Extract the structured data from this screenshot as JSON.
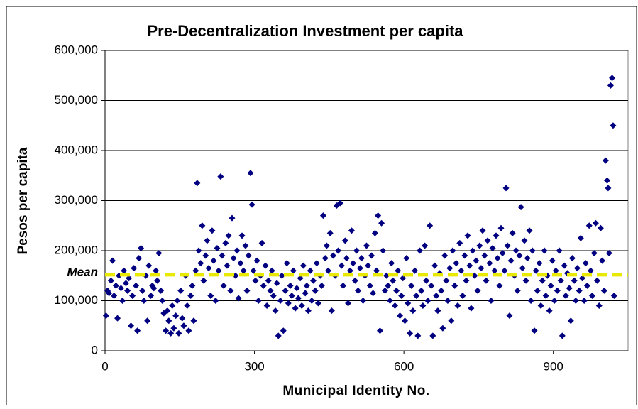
{
  "chart_data": {
    "type": "scatter",
    "title": "Pre-Decentralization Investment per capita",
    "x_label": "Municipal Identity No.",
    "y_label": "Pesos per capita",
    "color": "#000080",
    "xlim": [
      0,
      1050
    ],
    "ylim": [
      0,
      600000
    ],
    "xticks": [
      0,
      300,
      600,
      900
    ],
    "yticks": [
      0,
      {
        "value": 100000,
        "label": "100,000"
      },
      {
        "value": 200000,
        "label": "200,000"
      },
      {
        "value": 300000,
        "label": "300,000"
      },
      {
        "value": 400000,
        "label": "400,000"
      },
      {
        "value": 500000,
        "label": "500,000"
      },
      {
        "value": 600000,
        "label": "600,000"
      }
    ],
    "grid": true,
    "mean_line": {
      "label": "Mean",
      "value": 152000,
      "color": "#e8e800"
    },
    "x": [
      2,
      5,
      8,
      12,
      15,
      18,
      22,
      25,
      28,
      32,
      35,
      38,
      42,
      45,
      48,
      52,
      55,
      58,
      62,
      65,
      68,
      72,
      75,
      78,
      82,
      85,
      88,
      92,
      95,
      98,
      102,
      105,
      108,
      112,
      115,
      118,
      122,
      125,
      128,
      132,
      135,
      138,
      142,
      145,
      148,
      152,
      155,
      158,
      162,
      165,
      168,
      172,
      175,
      178,
      182,
      185,
      188,
      192,
      195,
      198,
      202,
      205,
      208,
      212,
      215,
      218,
      222,
      225,
      228,
      232,
      235,
      238,
      242,
      245,
      248,
      252,
      255,
      258,
      262,
      265,
      268,
      272,
      275,
      278,
      282,
      285,
      288,
      292,
      295,
      298,
      302,
      305,
      308,
      312,
      315,
      318,
      322,
      325,
      328,
      332,
      335,
      338,
      342,
      345,
      348,
      352,
      355,
      358,
      362,
      365,
      368,
      372,
      375,
      378,
      382,
      385,
      388,
      392,
      395,
      398,
      402,
      405,
      408,
      412,
      415,
      418,
      422,
      425,
      428,
      432,
      435,
      438,
      442,
      445,
      448,
      452,
      455,
      458,
      462,
      465,
      468,
      472,
      475,
      478,
      482,
      485,
      488,
      492,
      495,
      498,
      502,
      505,
      508,
      512,
      515,
      518,
      522,
      525,
      528,
      532,
      535,
      538,
      542,
      545,
      548,
      552,
      555,
      558,
      562,
      565,
      568,
      572,
      575,
      578,
      582,
      585,
      588,
      592,
      595,
      598,
      602,
      605,
      608,
      612,
      615,
      618,
      622,
      625,
      628,
      632,
      635,
      638,
      642,
      645,
      648,
      652,
      655,
      658,
      662,
      665,
      668,
      672,
      675,
      678,
      682,
      685,
      688,
      692,
      695,
      698,
      702,
      705,
      708,
      712,
      715,
      718,
      722,
      725,
      728,
      732,
      735,
      738,
      742,
      745,
      748,
      752,
      755,
      758,
      762,
      765,
      768,
      772,
      775,
      778,
      782,
      785,
      788,
      792,
      795,
      798,
      802,
      805,
      808,
      812,
      815,
      818,
      822,
      825,
      828,
      832,
      835,
      838,
      842,
      845,
      848,
      852,
      855,
      858,
      862,
      865,
      868,
      872,
      875,
      878,
      882,
      885,
      888,
      892,
      895,
      898,
      902,
      905,
      908,
      912,
      915,
      918,
      922,
      925,
      928,
      932,
      935,
      938,
      942,
      945,
      948,
      952,
      955,
      958,
      962,
      965,
      968,
      972,
      975,
      978,
      982,
      985,
      988,
      992,
      995,
      998,
      1002,
      1005,
      1008,
      1010,
      1012,
      1015,
      1018,
      1020,
      1022
    ],
    "values": [
      70000,
      120000,
      115000,
      140000,
      180000,
      110000,
      130000,
      65000,
      150000,
      125000,
      100000,
      160000,
      135000,
      120000,
      145000,
      50000,
      110000,
      165000,
      130000,
      40000,
      185000,
      205000,
      120000,
      100000,
      150000,
      60000,
      170000,
      110000,
      130000,
      125000,
      160000,
      140000,
      195000,
      120000,
      100000,
      75000,
      40000,
      80000,
      60000,
      35000,
      90000,
      45000,
      70000,
      100000,
      35000,
      120000,
      65000,
      50000,
      150000,
      90000,
      40000,
      110000,
      130000,
      60000,
      160000,
      335000,
      200000,
      175000,
      250000,
      140000,
      190000,
      220000,
      165000,
      110000,
      240000,
      180000,
      100000,
      205000,
      160000,
      348000,
      190000,
      130000,
      215000,
      170000,
      230000,
      120000,
      265000,
      185000,
      150000,
      200000,
      105000,
      175000,
      230000,
      160000,
      210000,
      120000,
      190000,
      355000,
      292000,
      160000,
      140000,
      180000,
      100000,
      150000,
      215000,
      130000,
      170000,
      90000,
      140000,
      120000,
      160000,
      110000,
      80000,
      135000,
      30000,
      100000,
      150000,
      40000,
      120000,
      175000,
      95000,
      130000,
      110000,
      160000,
      85000,
      125000,
      105000,
      145000,
      90000,
      170000,
      115000,
      130000,
      80000,
      160000,
      100000,
      140000,
      120000,
      175000,
      95000,
      150000,
      130000,
      270000,
      185000,
      210000,
      160000,
      235000,
      80000,
      190000,
      150000,
      290000,
      200000,
      295000,
      170000,
      130000,
      220000,
      185000,
      95000,
      160000,
      240000,
      175000,
      140000,
      200000,
      120000,
      165000,
      185000,
      100000,
      150000,
      210000,
      170000,
      130000,
      190000,
      115000,
      235000,
      160000,
      270000,
      40000,
      255000,
      200000,
      120000,
      150000,
      130000,
      100000,
      175000,
      140000,
      90000,
      120000,
      160000,
      70000,
      110000,
      145000,
      60000,
      185000,
      95000,
      35000,
      130000,
      80000,
      160000,
      110000,
      30000,
      200000,
      120000,
      90000,
      210000,
      140000,
      100000,
      250000,
      130000,
      30000,
      170000,
      110000,
      80000,
      155000,
      120000,
      45000,
      190000,
      140000,
      100000,
      165000,
      60000,
      200000,
      130000,
      175000,
      90000,
      215000,
      160000,
      110000,
      190000,
      140000,
      230000,
      170000,
      85000,
      200000,
      150000,
      180000,
      120000,
      210000,
      165000,
      240000,
      190000,
      140000,
      220000,
      175000,
      100000,
      205000,
      160000,
      230000,
      185000,
      130000,
      245000,
      195000,
      160000,
      325000,
      210000,
      70000,
      180000,
      235000,
      150000,
      200000,
      120000,
      190000,
      287000,
      165000,
      220000,
      140000,
      185000,
      240000,
      100000,
      200000,
      40000,
      160000,
      120000,
      175000,
      90000,
      140000,
      200000,
      110000,
      150000,
      80000,
      130000,
      180000,
      100000,
      160000,
      120000,
      200000,
      140000,
      30000,
      170000,
      110000,
      155000,
      125000,
      60000,
      185000,
      140000,
      100000,
      165000,
      120000,
      225000,
      145000,
      100000,
      175000,
      130000,
      250000,
      160000,
      110000,
      195000,
      255000,
      140000,
      90000,
      245000,
      180000,
      120000,
      380000,
      340000,
      325000,
      195000,
      530000,
      545000,
      450000,
      110000
    ]
  }
}
